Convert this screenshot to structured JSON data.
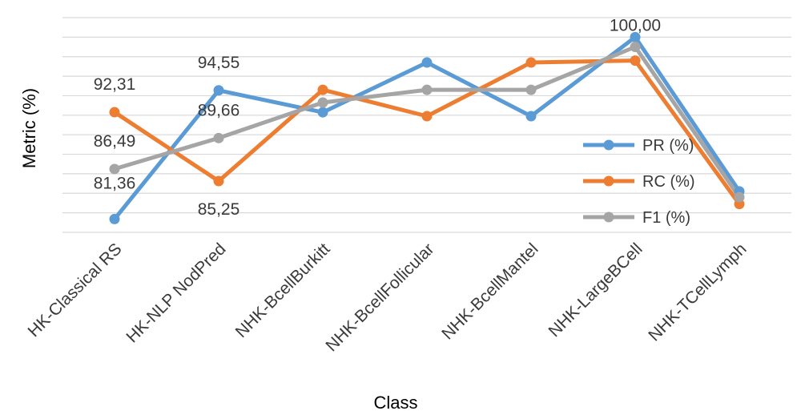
{
  "chart_data": {
    "type": "line",
    "categories": [
      "HK-Classical RS",
      "HK-NLP NodPred",
      "NHK-BcellBurkitt",
      "NHK-BcellFollicular",
      "NHK-BcellMantel",
      "NHK-LargeBCell",
      "NHK-TCellLymph"
    ],
    "series": [
      {
        "name": "PR (%)",
        "color": "#5b9bd5",
        "values": [
          81.36,
          94.55,
          92.3,
          97.4,
          91.9,
          100.0,
          84.2
        ]
      },
      {
        "name": "RC (%)",
        "color": "#ed7d31",
        "values": [
          92.31,
          85.25,
          94.6,
          91.9,
          97.4,
          97.6,
          82.9
        ]
      },
      {
        "name": "F1 (%)",
        "color": "#a5a5a5",
        "values": [
          86.49,
          89.66,
          93.3,
          94.6,
          94.6,
          99.0,
          83.6
        ]
      }
    ],
    "data_labels": [
      "81,36",
      "92,31",
      "86,49",
      "94,55",
      "85,25",
      "89,66",
      "100,00"
    ],
    "xlabel": "Class",
    "ylabel": "Metric (%)",
    "ylim": [
      80,
      102
    ],
    "gridlines": true,
    "legend_position": "right"
  }
}
